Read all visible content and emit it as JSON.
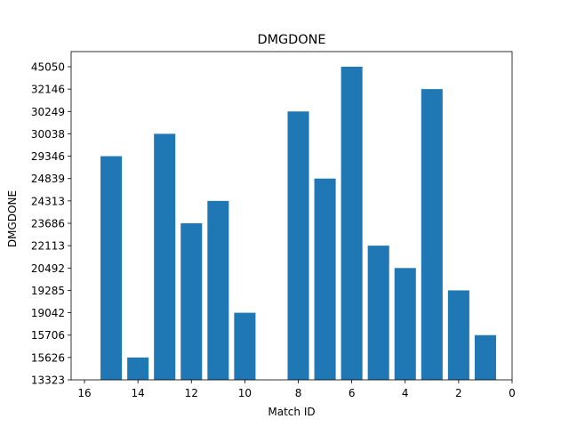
{
  "chart_data": {
    "type": "bar",
    "title": "DMGDONE",
    "xlabel": "Match ID",
    "ylabel": "DMGDONE",
    "x_axis": "inverted",
    "xlim": [
      16.5,
      0
    ],
    "x_ticks": [
      16,
      14,
      12,
      10,
      8,
      6,
      4,
      2,
      0
    ],
    "y_axis": "categorical",
    "y_categories": [
      "13323",
      "15626",
      "15706",
      "19042",
      "19285",
      "20492",
      "22113",
      "23686",
      "24313",
      "24839",
      "29346",
      "30038",
      "30249",
      "32146",
      "45050"
    ],
    "bars": [
      {
        "x": 15,
        "y": "29346"
      },
      {
        "x": 14,
        "y": "15626"
      },
      {
        "x": 13,
        "y": "30038"
      },
      {
        "x": 12,
        "y": "23686"
      },
      {
        "x": 11,
        "y": "24313"
      },
      {
        "x": 10,
        "y": "19042"
      },
      {
        "x": 9,
        "y": "13323"
      },
      {
        "x": 8,
        "y": "30249"
      },
      {
        "x": 7,
        "y": "24839"
      },
      {
        "x": 6,
        "y": "45050"
      },
      {
        "x": 5,
        "y": "22113"
      },
      {
        "x": 4,
        "y": "20492"
      },
      {
        "x": 3,
        "y": "32146"
      },
      {
        "x": 2,
        "y": "19285"
      },
      {
        "x": 1,
        "y": "15706"
      }
    ],
    "bar_color": "#1f77b4",
    "grid": false,
    "legend": "none"
  }
}
